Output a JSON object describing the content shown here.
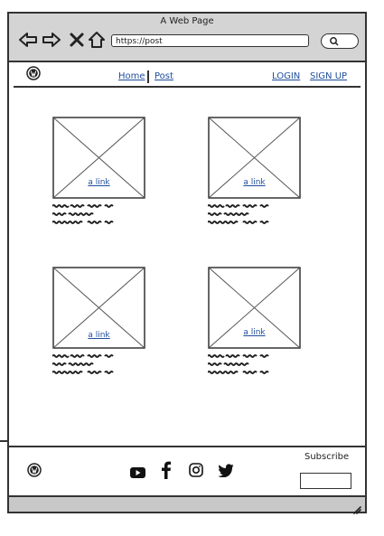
{
  "browser": {
    "window_title": "A Web Page",
    "url": "https://post",
    "icons": [
      "back-arrow-icon",
      "forward-arrow-icon",
      "stop-icon",
      "home-icon",
      "search-icon"
    ]
  },
  "site": {
    "logo": "wordpress-logo",
    "nav": {
      "home_label": "Home",
      "post_label": "Post",
      "login_label": "LOGIN",
      "signup_label": "SIGN UP"
    }
  },
  "cards": [
    {
      "link_label": "a link"
    },
    {
      "link_label": "a link"
    },
    {
      "link_label": "a link"
    },
    {
      "link_label": "a link"
    }
  ],
  "footer": {
    "logo": "wordpress-logo",
    "social_icons": [
      "youtube-icon",
      "facebook-icon",
      "instagram-icon",
      "twitter-icon"
    ],
    "subscribe_label": "Subscribe"
  },
  "colors": {
    "chrome": "#d4d4d4",
    "link": "#1f4e9c",
    "stroke": "#333333"
  }
}
